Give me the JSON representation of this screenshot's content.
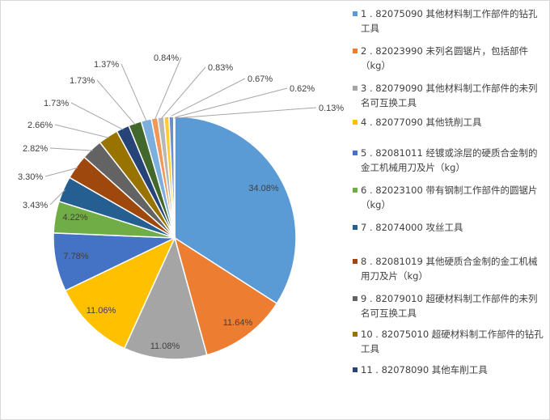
{
  "chart_data": {
    "type": "pie",
    "legend_position": "right",
    "series": [
      {
        "name": "1 . 82075090 其他材料制工作部件的钻孔工具",
        "label": "34.08%",
        "value": 34.08,
        "color": "#5b9bd5"
      },
      {
        "name": "2 . 82023990 未列名圆锯片，包括部件（kg）",
        "label": "11.64%",
        "value": 11.64,
        "color": "#ed7d31"
      },
      {
        "name": "3 . 82079090 其他材料制工作部件的未列名可互换工具",
        "label": "11.08%",
        "value": 11.08,
        "color": "#a5a5a5"
      },
      {
        "name": "4 . 82077090 其他铣削工具",
        "label": "11.06%",
        "value": 11.06,
        "color": "#ffc000"
      },
      {
        "name": "5 . 82081011 经镀或涂层的硬质合金制的金工机械用刀及片（kg）",
        "label": "7.78%",
        "value": 7.78,
        "color": "#4472c4"
      },
      {
        "name": "6 . 82023100 带有钢制工作部件的圆锯片（kg）",
        "label": "4.22%",
        "value": 4.22,
        "color": "#70ad47"
      },
      {
        "name": "7 . 82074000 攻丝工具",
        "label": "3.43%",
        "value": 3.43,
        "color": "#255e91"
      },
      {
        "name": "8 . 82081019 其他硬质合金制的金工机械用刀及片（kg）",
        "label": "3.30%",
        "value": 3.3,
        "color": "#9e480e"
      },
      {
        "name": "9 . 82079010 超硬材料制工作部件的未列名可互换工具",
        "label": "2.82%",
        "value": 2.82,
        "color": "#636363"
      },
      {
        "name": "10 . 82075010 超硬材料制工作部件的钻孔工具",
        "label": "2.66%",
        "value": 2.66,
        "color": "#997300"
      },
      {
        "name": "11 . 82078090 其他车削工具",
        "label": "1.73%",
        "value": 1.73,
        "color": "#264478"
      },
      {
        "name": "",
        "label": "1.73%",
        "value": 1.73,
        "color": "#43682b"
      },
      {
        "name": "",
        "label": "1.37%",
        "value": 1.37,
        "color": "#7cafdd"
      },
      {
        "name": "",
        "label": "0.84%",
        "value": 0.84,
        "color": "#f1975a"
      },
      {
        "name": "",
        "label": "0.83%",
        "value": 0.83,
        "color": "#b7b7b7"
      },
      {
        "name": "",
        "label": "0.67%",
        "value": 0.67,
        "color": "#ffcd33"
      },
      {
        "name": "",
        "label": "0.62%",
        "value": 0.62,
        "color": "#698ed0"
      },
      {
        "name": "",
        "label": "0.13%",
        "value": 0.13,
        "color": "#8cc168"
      }
    ]
  }
}
